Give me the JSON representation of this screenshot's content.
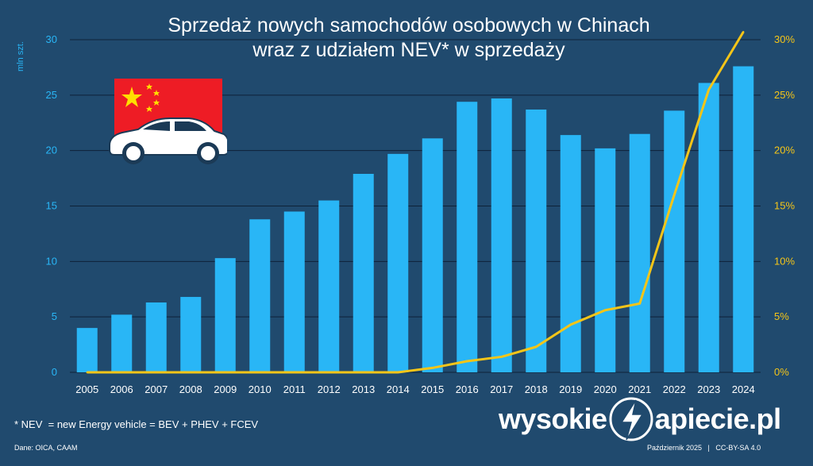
{
  "title": {
    "line1": "Sprzedaż nowych samochodów osobowych w Chinach",
    "line2": "wraz z udziałem NEV* w sprzedaży"
  },
  "footnote": "* NEV  = new Energy vehicle = BEV + PHEV + FCEV",
  "source": "Dane: OICA, CAAM",
  "brand": {
    "left": "wysokie",
    "right": "apiecie.pl"
  },
  "credit": "Październik 2025   |   CC-BY-SA 4.0",
  "colors": {
    "background": "#204a6e",
    "bars": "#29b6f6",
    "line": "#f5c518",
    "grid": "#0e2238",
    "flag_red": "#ee1c25",
    "flag_star": "#ffde00"
  },
  "icons": [
    "china-flag-icon",
    "car-icon",
    "lightning-bolt-icon"
  ],
  "chart_data": {
    "type": "bar",
    "categories": [
      "2005",
      "2006",
      "2007",
      "2008",
      "2009",
      "2010",
      "2011",
      "2012",
      "2013",
      "2014",
      "2015",
      "2016",
      "2017",
      "2018",
      "2019",
      "2020",
      "2021",
      "2022",
      "2023",
      "2024"
    ],
    "ylabel": "mln szt.",
    "ylim": [
      0,
      30
    ],
    "yticks": [
      0,
      5,
      10,
      15,
      20,
      25,
      30
    ],
    "y2lim": [
      0,
      30
    ],
    "y2ticks": [
      "0%",
      "5%",
      "10%",
      "15%",
      "20%",
      "25%",
      "30%"
    ],
    "grid": true,
    "series": [
      {
        "type": "bar",
        "axis": "left",
        "values": [
          4.0,
          5.2,
          6.3,
          6.8,
          10.3,
          13.8,
          14.5,
          15.5,
          17.9,
          19.7,
          21.1,
          24.4,
          24.7,
          23.7,
          21.4,
          20.2,
          21.5,
          23.6,
          26.1,
          27.6
        ]
      },
      {
        "type": "line",
        "axis": "right",
        "values": [
          0,
          0,
          0,
          0,
          0,
          0,
          0,
          0,
          0,
          0,
          0.4,
          1.0,
          1.4,
          2.3,
          4.3,
          5.6,
          6.2,
          16.0,
          25.5,
          30.7
        ]
      }
    ]
  }
}
